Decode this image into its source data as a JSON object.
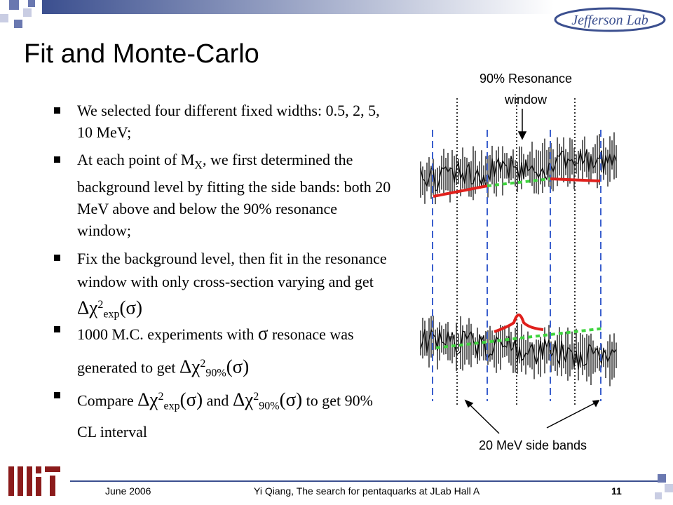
{
  "header": {
    "title": "Fit and Monte-Carlo",
    "logo": "Jefferson Lab"
  },
  "bullets": [
    [
      "We selected four different fixed widths: 0.5, 2, 5, 10 MeV;"
    ],
    [
      "At each point of M",
      {
        "sub": "X"
      },
      ", we first determined the background level by fitting the side bands: both 20 MeV above and below the 90% resonance window;"
    ],
    [
      "Fix the background level, then fit in the resonance window with only cross-section varying and get ",
      {
        "math": "Δχ"
      },
      {
        "sup": "2"
      },
      {
        "sub": "exp"
      },
      {
        "math": "(σ)"
      }
    ],
    [
      "1000 M.C. experiments with ",
      {
        "math": "σ"
      },
      " resonace was generated to get ",
      {
        "math": "Δχ"
      },
      {
        "sup": "2"
      },
      {
        "sub": "90%"
      },
      {
        "math": "(σ)"
      }
    ],
    [
      "Compare ",
      {
        "math": "Δχ"
      },
      {
        "sup": "2"
      },
      {
        "sub": "exp"
      },
      {
        "math": "(σ)"
      },
      " and ",
      {
        "math": "Δχ"
      },
      {
        "sup": "2"
      },
      {
        "sub": "90%"
      },
      {
        "math": "(σ)"
      },
      "  to get 90% CL interval"
    ]
  ],
  "figure": {
    "window_label": [
      "90% Resonance",
      "window"
    ],
    "sideband_label": "20 MeV side bands"
  },
  "footer": {
    "date": "June 2006",
    "author": "Yi Qiang, The search for pentaquarks at JLab Hall A",
    "page": "11"
  }
}
